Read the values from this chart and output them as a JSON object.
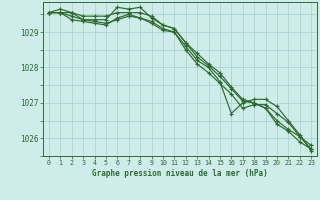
{
  "title": "Graphe pression niveau de la mer (hPa)",
  "background_color": "#ceecea",
  "grid_color": "#aed4d0",
  "line_color": "#2d6b2d",
  "xlim": [
    -0.5,
    23.5
  ],
  "ylim": [
    1025.55,
    1029.85
  ],
  "yticks": [
    1026,
    1027,
    1028,
    1029
  ],
  "xticks": [
    0,
    1,
    2,
    3,
    4,
    5,
    6,
    7,
    8,
    9,
    10,
    11,
    12,
    13,
    14,
    15,
    16,
    17,
    18,
    19,
    20,
    21,
    22,
    23
  ],
  "series": [
    [
      1029.55,
      1029.55,
      1029.55,
      1029.45,
      1029.45,
      1029.45,
      1029.55,
      1029.55,
      1029.55,
      1029.45,
      1029.2,
      1029.1,
      1028.7,
      1028.4,
      1028.1,
      1027.85,
      1027.45,
      1027.1,
      1027.0,
      1026.85,
      1026.5,
      1026.25,
      1026.05,
      1025.8
    ],
    [
      1029.55,
      1029.55,
      1029.35,
      1029.3,
      1029.25,
      1029.2,
      1029.4,
      1029.5,
      1029.4,
      1029.3,
      1029.1,
      1029.0,
      1028.6,
      1028.2,
      1028.0,
      1027.6,
      1026.7,
      1027.0,
      1027.1,
      1027.1,
      1026.9,
      1026.5,
      1026.1,
      1025.65
    ],
    [
      1029.55,
      1029.65,
      1029.55,
      1029.35,
      1029.35,
      1029.35,
      1029.7,
      1029.65,
      1029.7,
      1029.4,
      1029.2,
      1029.1,
      1028.7,
      1028.3,
      1028.05,
      1027.75,
      1027.4,
      1027.05,
      1027.0,
      1026.85,
      1026.4,
      1026.2,
      1025.9,
      1025.7
    ],
    [
      1029.55,
      1029.55,
      1029.45,
      1029.35,
      1029.3,
      1029.25,
      1029.35,
      1029.45,
      1029.4,
      1029.25,
      1029.05,
      1029.0,
      1028.5,
      1028.1,
      1027.85,
      1027.55,
      1027.25,
      1026.85,
      1026.95,
      1026.95,
      1026.7,
      1026.45,
      1026.05,
      1025.7
    ]
  ]
}
